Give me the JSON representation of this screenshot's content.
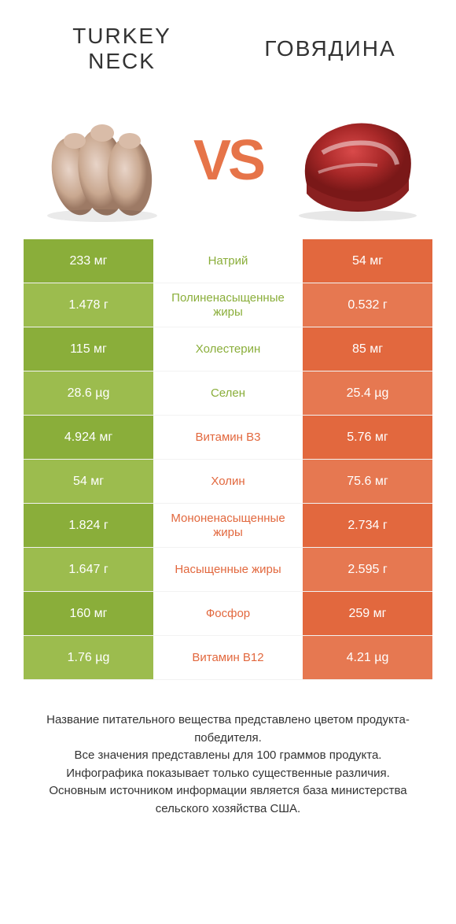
{
  "colors": {
    "green_dark": "#8aae3a",
    "green_light": "#9cbc4e",
    "orange_dark": "#e2683e",
    "orange_light": "#e67851",
    "text_green": "#8aae3a",
    "text_orange": "#e2683e",
    "vs": "#e67449"
  },
  "header": {
    "left_line1": "TURKEY",
    "left_line2": "NECK",
    "right": "ГОВЯДИНА",
    "vs": "VS"
  },
  "rows": [
    {
      "left": "233 мг",
      "label": "Натрий",
      "right": "54 мг",
      "winner": "left"
    },
    {
      "left": "1.478 г",
      "label": "Полиненасыщенные жиры",
      "right": "0.532 г",
      "winner": "left"
    },
    {
      "left": "115 мг",
      "label": "Холестерин",
      "right": "85 мг",
      "winner": "left"
    },
    {
      "left": "28.6 µg",
      "label": "Селен",
      "right": "25.4 µg",
      "winner": "left"
    },
    {
      "left": "4.924 мг",
      "label": "Витамин B3",
      "right": "5.76 мг",
      "winner": "right"
    },
    {
      "left": "54 мг",
      "label": "Холин",
      "right": "75.6 мг",
      "winner": "right"
    },
    {
      "left": "1.824 г",
      "label": "Мононенасыщенные жиры",
      "right": "2.734 г",
      "winner": "right"
    },
    {
      "left": "1.647 г",
      "label": "Насыщенные жиры",
      "right": "2.595 г",
      "winner": "right"
    },
    {
      "left": "160 мг",
      "label": "Фосфор",
      "right": "259 мг",
      "winner": "right"
    },
    {
      "left": "1.76 µg",
      "label": "Витамин B12",
      "right": "4.21 µg",
      "winner": "right"
    }
  ],
  "footer": {
    "line1": "Название питательного вещества представлено цветом продукта-победителя.",
    "line2": "Все значения представлены для 100 граммов продукта.",
    "line3": "Инфографика показывает только существенные различия.",
    "line4": "Основным источником информации является база министерства сельского хозяйства США."
  }
}
